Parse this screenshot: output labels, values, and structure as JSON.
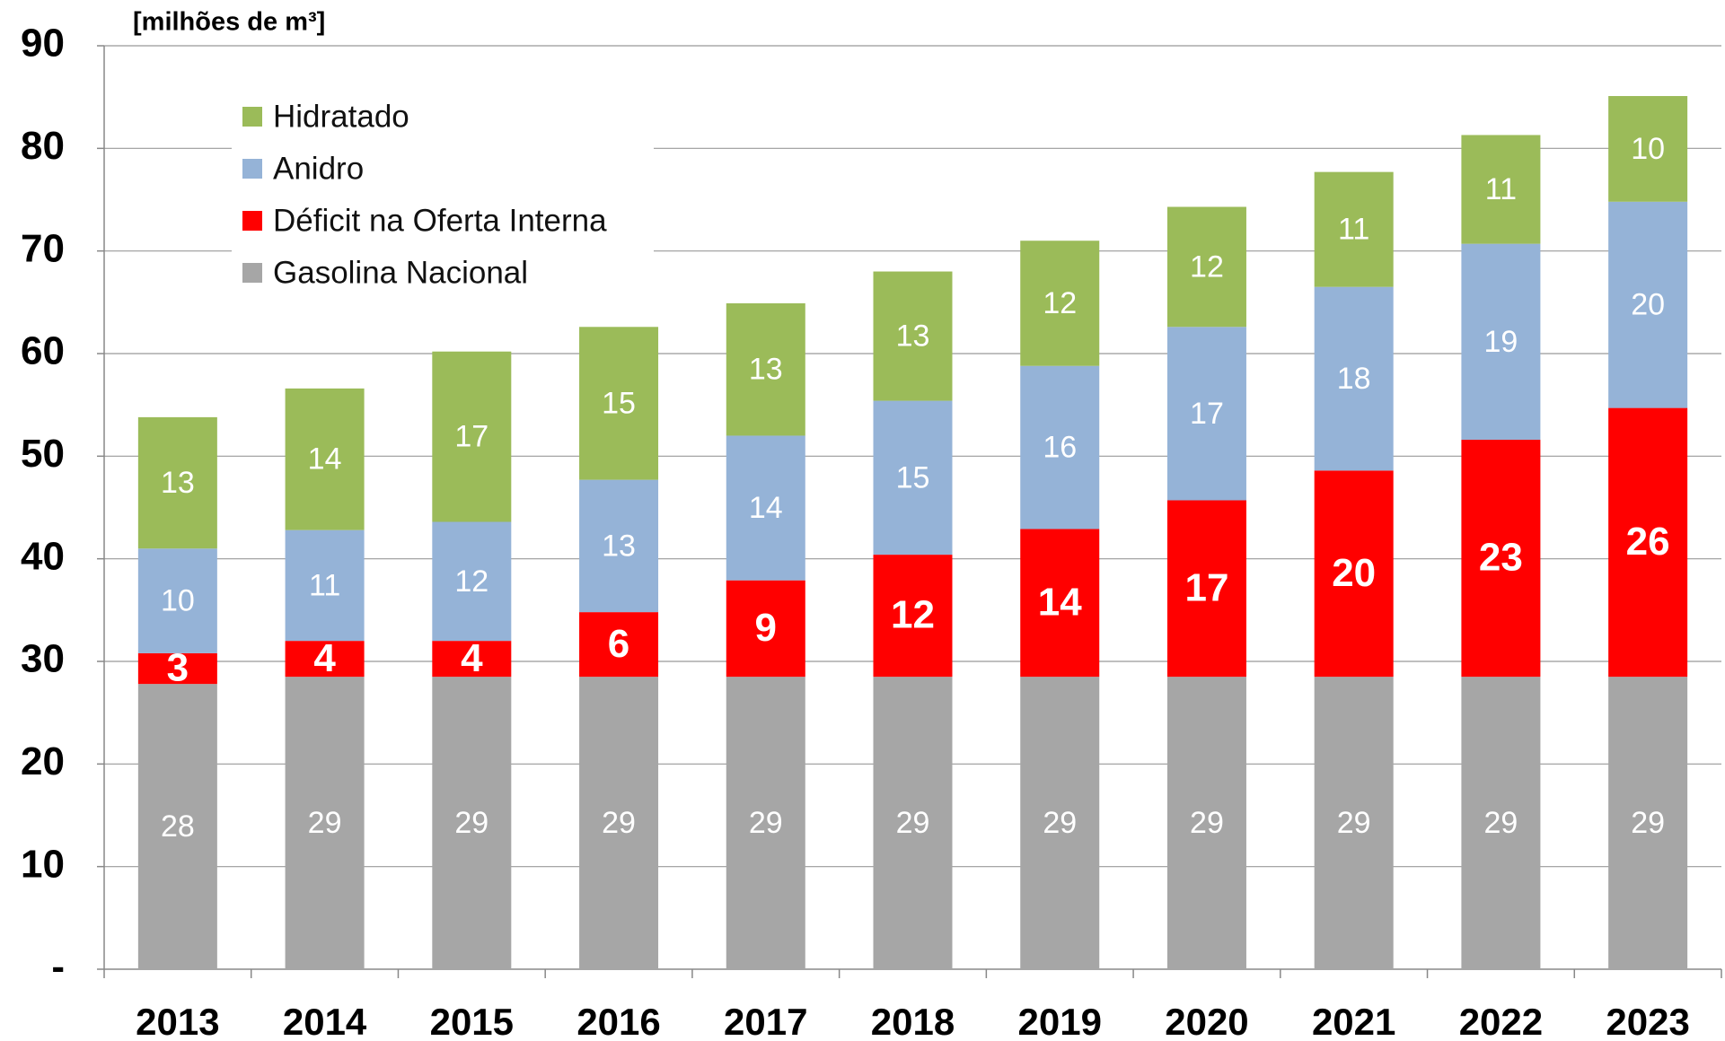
{
  "chart_data": {
    "type": "stacked_bar",
    "y_label": "[milhões de m³]",
    "categories": [
      "2013",
      "2014",
      "2015",
      "2016",
      "2017",
      "2018",
      "2019",
      "2020",
      "2021",
      "2022",
      "2023"
    ],
    "series": [
      {
        "name": "Gasolina Nacional",
        "color": "#a6a6a6",
        "values": [
          27.8,
          28.5,
          28.5,
          28.5,
          28.5,
          28.5,
          28.5,
          28.5,
          28.5,
          28.5,
          28.5
        ],
        "value_labels": [
          "28",
          "29",
          "29",
          "29",
          "29",
          "29",
          "29",
          "29",
          "29",
          "29",
          "29"
        ]
      },
      {
        "name": "Déficit na Oferta Interna",
        "color": "#ff0000",
        "values": [
          3.0,
          3.5,
          3.5,
          6.3,
          9.4,
          11.9,
          14.4,
          17.2,
          20.1,
          23.1,
          26.2
        ],
        "value_labels": [
          "3",
          "4",
          "4",
          "6",
          "9",
          "12",
          "14",
          "17",
          "20",
          "23",
          "26"
        ]
      },
      {
        "name": "Anidro",
        "color": "#95b3d7",
        "values": [
          10.2,
          10.8,
          11.6,
          12.9,
          14.1,
          15.0,
          15.9,
          16.9,
          17.9,
          19.1,
          20.1
        ],
        "value_labels": [
          "10",
          "11",
          "12",
          "13",
          "14",
          "15",
          "16",
          "17",
          "18",
          "19",
          "20"
        ]
      },
      {
        "name": "Hidratado",
        "color": "#9bbb59",
        "values": [
          12.8,
          13.8,
          16.6,
          14.9,
          12.9,
          12.6,
          12.2,
          11.7,
          11.2,
          10.6,
          10.3
        ],
        "value_labels": [
          "13",
          "14",
          "17",
          "15",
          "13",
          "13",
          "12",
          "12",
          "11",
          "11",
          "10"
        ]
      }
    ],
    "ylim": [
      0,
      90
    ],
    "yticks": [
      {
        "value": 0,
        "label": "-"
      },
      10,
      20,
      30,
      40,
      50,
      60,
      70,
      80,
      90
    ],
    "grid": true,
    "legend": "top-left"
  }
}
